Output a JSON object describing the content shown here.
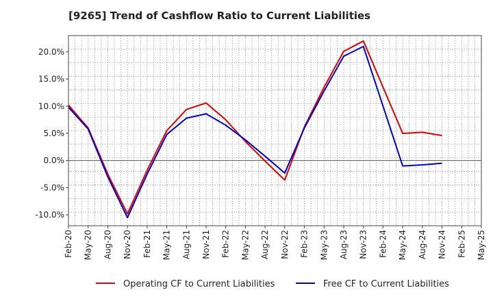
{
  "chart_data": {
    "type": "line",
    "title": "[9265]  Trend of Cashflow Ratio to Current Liabilities",
    "xlabel": "",
    "ylabel": "",
    "categories": [
      "Feb-20",
      "May-20",
      "Aug-20",
      "Nov-20",
      "Feb-21",
      "May-21",
      "Aug-21",
      "Nov-21",
      "Feb-22",
      "May-22",
      "Aug-22",
      "Nov-22",
      "Feb-23",
      "May-23",
      "Aug-23",
      "Nov-23",
      "Feb-24",
      "May-24",
      "Aug-24",
      "Nov-24",
      "Feb-25",
      "May-25"
    ],
    "ylim": [
      -12,
      23
    ],
    "yticks": [
      -10,
      -5,
      0,
      5,
      10,
      15,
      20
    ],
    "ytick_labels": [
      "-10.0%",
      "-5.0%",
      "0.0%",
      "5.0%",
      "10.0%",
      "15.0%",
      "20.0%"
    ],
    "grid": true,
    "legend": "bottom",
    "series": [
      {
        "name": "Operating CF to Current Liabilities",
        "color": "#e00000",
        "values": [
          10.2,
          6.0,
          -2.5,
          -9.8,
          -1.8,
          5.5,
          9.4,
          10.6,
          7.5,
          3.5,
          -0.1,
          -3.6,
          6.2,
          13.5,
          20.1,
          22.0,
          13.5,
          5.0,
          5.2,
          4.6,
          null,
          null
        ]
      },
      {
        "name": "Free CF to Current Liabilities",
        "color": "#0000cc",
        "values": [
          9.8,
          5.8,
          -3.0,
          -10.5,
          -2.5,
          4.8,
          7.8,
          8.6,
          6.5,
          3.8,
          0.8,
          -2.3,
          6.0,
          12.8,
          19.2,
          21.0,
          10.0,
          -1.0,
          -0.8,
          -0.5,
          null,
          null
        ]
      }
    ]
  }
}
